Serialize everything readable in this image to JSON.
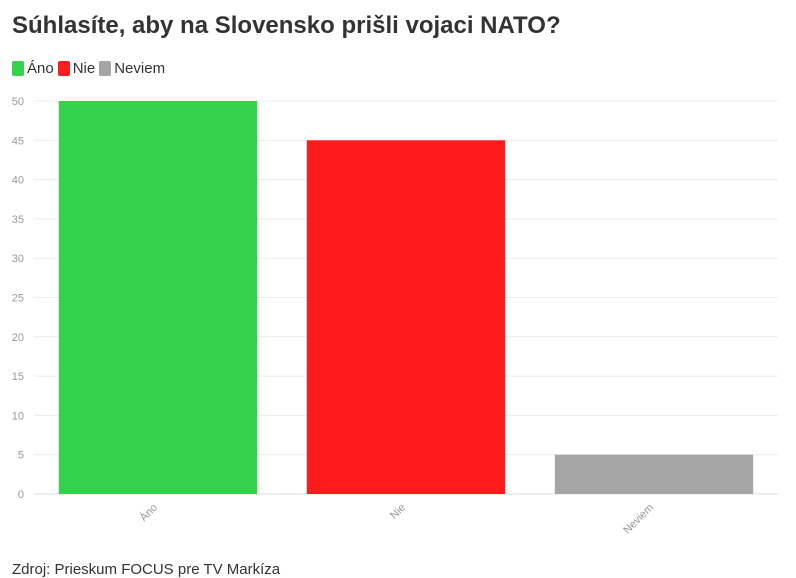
{
  "title": "Súhlasíte, aby na Slovensko prišli vojaci NATO?",
  "legend": [
    {
      "label": "Áno",
      "color": "#33d24a"
    },
    {
      "label": "Nie",
      "color": "#ff1b1b"
    },
    {
      "label": "Neviem",
      "color": "#a5a5a5"
    }
  ],
  "source": "Zdroj: Prieskum FOCUS pre TV Markíza",
  "chart_data": {
    "type": "bar",
    "categories": [
      "Áno",
      "Nie",
      "Neviem"
    ],
    "values": [
      50,
      45,
      5
    ],
    "colors": [
      "#33d24a",
      "#ff1b1b",
      "#a5a5a5"
    ],
    "title": "Súhlasíte, aby na Slovensko prišli vojaci NATO?",
    "xlabel": "",
    "ylabel": "",
    "ylim": [
      0,
      50
    ],
    "yticks": [
      0,
      5,
      10,
      15,
      20,
      25,
      30,
      35,
      40,
      45,
      50
    ],
    "grid": true,
    "legend_position": "top-left"
  }
}
